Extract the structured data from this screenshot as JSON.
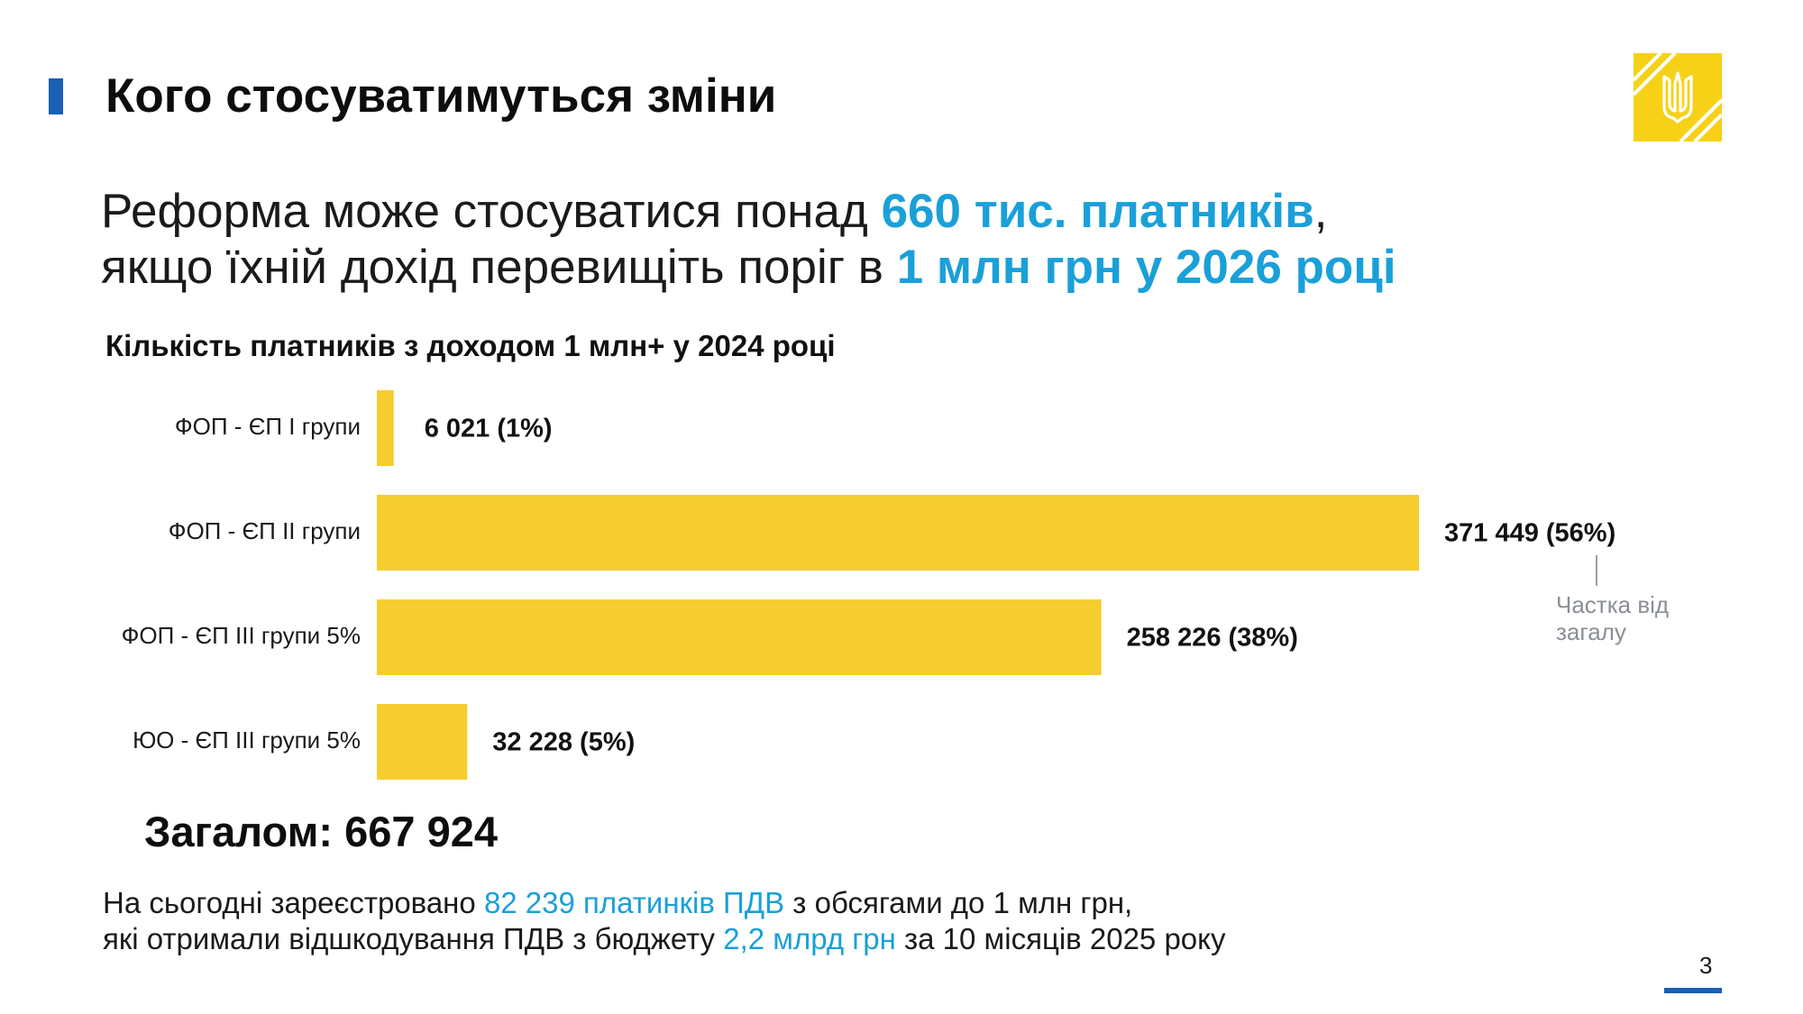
{
  "header": {
    "title": "Кого стосуватимуться зміни"
  },
  "headline": {
    "line1_prefix": "Реформа може стосуватися понад ",
    "line1_highlight": "660 тис. платників",
    "line1_suffix": ",",
    "line2_prefix": "якщо їхній дохід перевищіть поріг в ",
    "line2_highlight": "1 млн грн у 2026 році"
  },
  "chart_data": {
    "type": "bar",
    "orientation": "horizontal",
    "title": "Кількість платників з доходом 1 млн+ у 2024 році",
    "categories": [
      "ФОП - ЄП I групи",
      "ФОП - ЄП II групи",
      "ФОП - ЄП III групи 5%",
      "ЮО - ЄП III групи 5%"
    ],
    "values": [
      6021,
      371449,
      258226,
      32228
    ],
    "data_labels": [
      "6 021 (1%)",
      "371 449 (56%)",
      "258 226 (38%)",
      "32 228 (5%)"
    ],
    "share_note": "Частка від загалу",
    "total_label": "Загалом: 667 924",
    "bar_color": "#f5cd2e",
    "grid": false,
    "legend": "none"
  },
  "footnote": {
    "line1_prefix": "На сьогодні зареєстровано ",
    "line1_highlight": "82 239 платинків ПДВ",
    "line1_suffix": " з обсягами до 1 млн грн,",
    "line2_prefix": "які отримали відшкодування ПДВ з бюджету ",
    "line2_highlight": "2,2 млрд грн",
    "line2_suffix": " за 10 місяців 2025 року"
  },
  "page_number": "3",
  "colors": {
    "accent_blue": "#1a5fb4",
    "highlight_cyan": "#1aa0d8",
    "emblem_yellow": "#f7d117"
  },
  "icons": {
    "emblem": "ukraine-trident-emblem-icon"
  }
}
